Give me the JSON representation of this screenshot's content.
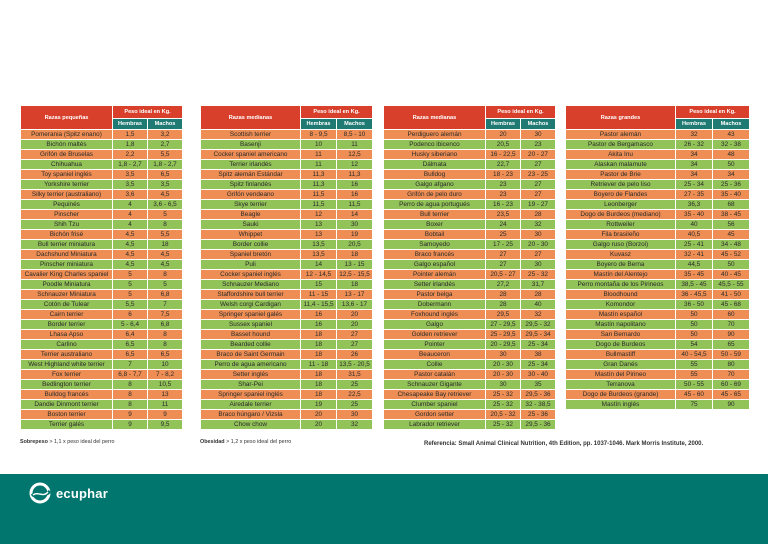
{
  "tables": [
    {
      "breed_header": "Razas pequeñas",
      "weight_header": "Peso ideal en Kg.",
      "female_header": "Hembras",
      "male_header": "Machos",
      "rows": [
        [
          "Pomerania (Spitz enano)",
          "1,5",
          "3,2"
        ],
        [
          "Bichón maltés",
          "1,8",
          "2,7"
        ],
        [
          "Grifón de Bruselas",
          "2,2",
          "5,5"
        ],
        [
          "Chihuahua",
          "1,8 - 2,7",
          "1,8 - 2,7"
        ],
        [
          "Toy spaniel inglés",
          "3,5",
          "6,5"
        ],
        [
          "Yorkshire terrier",
          "3,5",
          "3,5"
        ],
        [
          "Silky terrier (australiano)",
          "3,6",
          "4,5"
        ],
        [
          "Pequinés",
          "4",
          "3,6 - 6,5"
        ],
        [
          "Pinscher",
          "4",
          "5"
        ],
        [
          "Shih Tzu",
          "4",
          "8"
        ],
        [
          "Bichón frisé",
          "4,5",
          "5,5"
        ],
        [
          "Bull terrier miniatura",
          "4,5",
          "18"
        ],
        [
          "Dachshund Miniatura",
          "4,5",
          "4,5"
        ],
        [
          "Pinscher miniatura",
          "4,5",
          "4,5"
        ],
        [
          "Cavalier King Charles spaniel",
          "5",
          "8"
        ],
        [
          "Poodle Miniatura",
          "5",
          "5"
        ],
        [
          "Schnauzer Miniatura",
          "5",
          "6,8"
        ],
        [
          "Cotón de Tulear",
          "5,5",
          "7"
        ],
        [
          "Cairn terrier",
          "6",
          "7,5"
        ],
        [
          "Border terrier",
          "5 - 6,4",
          "6,8"
        ],
        [
          "Lhasa Apso",
          "6,4",
          "8"
        ],
        [
          "Carlino",
          "6,5",
          "8"
        ],
        [
          "Terrier australiano",
          "6,5",
          "6,5"
        ],
        [
          "West Highland white terrier",
          "7",
          "10"
        ],
        [
          "Fox terrier",
          "6,8 - 7,7",
          "7 - 8,2"
        ],
        [
          "Bedlington terrier",
          "8",
          "10,5"
        ],
        [
          "Bulldog francés",
          "8",
          "13"
        ],
        [
          "Dandie Dinmont terrier",
          "8",
          "11"
        ],
        [
          "Boston terrier",
          "9",
          "9"
        ],
        [
          "Terrier galés",
          "9",
          "9,5"
        ]
      ]
    },
    {
      "breed_header": "Razas medianas",
      "weight_header": "Peso ideal en Kg.",
      "female_header": "Hembras",
      "male_header": "Machos",
      "rows": [
        [
          "Scottish terrier",
          "8 - 9,5",
          "8,5 - 10"
        ],
        [
          "Basenji",
          "10",
          "11"
        ],
        [
          "Cocker spaniel americano",
          "11",
          "12,5"
        ],
        [
          "Terrier irlandés",
          "11",
          "12"
        ],
        [
          "Spitz alemán Estándar",
          "11,3",
          "11,3"
        ],
        [
          "Spitz finlandés",
          "11,3",
          "16"
        ],
        [
          "Grifón vendeano",
          "11,5",
          "16"
        ],
        [
          "Skye terrier",
          "11,5",
          "11,5"
        ],
        [
          "Beagle",
          "12",
          "14"
        ],
        [
          "Sauki",
          "13",
          "30"
        ],
        [
          "Whippet",
          "13",
          "19"
        ],
        [
          "Border collie",
          "13,5",
          "20,5"
        ],
        [
          "Spaniel bretón",
          "13,5",
          "18"
        ],
        [
          "Puli",
          "14",
          "13 - 15"
        ],
        [
          "Cocker spaniel inglés",
          "12 - 14,5",
          "12,5 - 15,5"
        ],
        [
          "Schnauzer Mediano",
          "15",
          "18"
        ],
        [
          "Staffordshire bull terrier",
          "11 - 15",
          "13 - 17"
        ],
        [
          "Welsh corgi Cardigan",
          "11,4 - 15,5",
          "13,6 - 17"
        ],
        [
          "Springer spaniel galés",
          "16",
          "20"
        ],
        [
          "Sussex spaniel",
          "16",
          "20"
        ],
        [
          "Basset hound",
          "18",
          "27"
        ],
        [
          "Bearded collie",
          "18",
          "27"
        ],
        [
          "Braco de Saint Germain",
          "18",
          "26"
        ],
        [
          "Perro de agua americano",
          "11 - 18",
          "13,5 - 20,5"
        ],
        [
          "Setter inglés",
          "18",
          "31,5"
        ],
        [
          "Shar-Pei",
          "18",
          "25"
        ],
        [
          "Springer spaniel inglés",
          "18",
          "22,5"
        ],
        [
          "Airedale terrier",
          "19",
          "25"
        ],
        [
          "Braco húngaro / Vizsla",
          "20",
          "30"
        ],
        [
          "Chow chow",
          "20",
          "32"
        ]
      ]
    },
    {
      "breed_header": "Razas medianas",
      "weight_header": "Peso ideal en Kg.",
      "female_header": "Hembras",
      "male_header": "Machos",
      "rows": [
        [
          "Perdiguero alemán",
          "20",
          "30"
        ],
        [
          "Podenco ibicenco",
          "20,5",
          "23"
        ],
        [
          "Husky siberiano",
          "16 - 22,5",
          "20 - 27"
        ],
        [
          "Dálmata",
          "22,7",
          "27"
        ],
        [
          "Bulldog",
          "18 - 23",
          "23 - 25"
        ],
        [
          "Galgo afgano",
          "23",
          "27"
        ],
        [
          "Grifón de pelo duro",
          "23",
          "27"
        ],
        [
          "Perro de agua portugués",
          "16 - 23",
          "19 - 27"
        ],
        [
          "Bull terrier",
          "23,5",
          "28"
        ],
        [
          "Boxer",
          "24",
          "32"
        ],
        [
          "Bobtail",
          "25",
          "30"
        ],
        [
          "Samoyedo",
          "17 - 25",
          "20 - 30"
        ],
        [
          "Braco francés",
          "27",
          "27"
        ],
        [
          "Galgo español",
          "27",
          "30"
        ],
        [
          "Pointer alemán",
          "20,5 - 27",
          "25 - 32"
        ],
        [
          "Setter irlandés",
          "27,2",
          "31,7"
        ],
        [
          "Pastor belga",
          "28",
          "28"
        ],
        [
          "Dobermann",
          "28",
          "40"
        ],
        [
          "Foxhound inglés",
          "29,5",
          "32"
        ],
        [
          "Galgo",
          "27 - 29,5",
          "29,5 - 32"
        ],
        [
          "Golden retriever",
          "25 - 29,5",
          "29,5 - 34"
        ],
        [
          "Pointer",
          "20 - 29,5",
          "25 - 34"
        ],
        [
          "Beauceron",
          "30",
          "38"
        ],
        [
          "Collie",
          "20 - 30",
          "25 - 34"
        ],
        [
          "Pastor catalán",
          "20 - 30",
          "30 - 40"
        ],
        [
          "Schnauzer Gigante",
          "30",
          "35"
        ],
        [
          "Chesapeake Bay retriever",
          "25 - 32",
          "29,5 - 36"
        ],
        [
          "Clumber spaniel",
          "25 - 32",
          "32 - 38,5"
        ],
        [
          "Gordon setter",
          "20,5 - 32",
          "25 - 36"
        ],
        [
          "Labrador retriever",
          "25 - 32",
          "29,5 - 36"
        ]
      ]
    },
    {
      "breed_header": "Razas grandes",
      "weight_header": "Peso ideal en Kg.",
      "female_header": "Hembras",
      "male_header": "Machos",
      "rows": [
        [
          "Pastor alemán",
          "32",
          "43"
        ],
        [
          "Pastor de Bergamasco",
          "26 - 32",
          "32 - 38"
        ],
        [
          "Akita Inu",
          "34",
          "48"
        ],
        [
          "Alaskan malamute",
          "34",
          "50"
        ],
        [
          "Pastor de Brie",
          "34",
          "34"
        ],
        [
          "Retriever de pelo liso",
          "25 - 34",
          "25 - 36"
        ],
        [
          "Boyero de Flandes",
          "27 - 35",
          "35 - 40"
        ],
        [
          "Leonberger",
          "36,3",
          "68"
        ],
        [
          "Dogo de Burdeos (mediano)",
          "35 - 40",
          "38 - 45"
        ],
        [
          "Rottweiler",
          "40",
          "56"
        ],
        [
          "Fila brasileño",
          "40,5",
          "45"
        ],
        [
          "Galgo ruso (Borzoi)",
          "25 - 41",
          "34 - 48"
        ],
        [
          "Kuvasz",
          "32 - 41",
          "45 - 52"
        ],
        [
          "Boyero de Berna",
          "44,5",
          "50"
        ],
        [
          "Mastín del Alentejo",
          "35 - 45",
          "40 - 45"
        ],
        [
          "Perro montaña de los Pirineos",
          "38,5 - 45",
          "45,5 - 55"
        ],
        [
          "Bloodhound",
          "36 - 45,5",
          "41 - 50"
        ],
        [
          "Komondor",
          "36 - 50",
          "45 - 68"
        ],
        [
          "Mastín español",
          "50",
          "60"
        ],
        [
          "Mastín napolitano",
          "50",
          "70"
        ],
        [
          "San Bernardo",
          "50",
          "90"
        ],
        [
          "Dogo de Burdeos",
          "54",
          "65"
        ],
        [
          "Bullmastiff",
          "40 - 54,5",
          "50 - 59"
        ],
        [
          "Gran Danés",
          "55",
          "80"
        ],
        [
          "Mastín del Pirineo",
          "55",
          "70"
        ],
        [
          "Terranova",
          "50 - 55",
          "60 - 69"
        ],
        [
          "Dogo de Burdeos (grande)",
          "45 - 60",
          "45 - 65"
        ],
        [
          "Mastín inglés",
          "75",
          "90"
        ]
      ]
    }
  ],
  "footer": {
    "sobrepeso_label": "Sobrepeso",
    "sobrepeso_text": "> 1,1 x peso ideal del perro",
    "obesidad_label": "Obesidad",
    "obesidad_text": "> 1,2 x peso ideal del perro",
    "reference": "Referencia: Small Animal Clinical Nutrition, 4th Edition, pp. 1037-1046. Mark Morris Institute, 2000."
  },
  "brand": {
    "name": "ecuphar",
    "logo_icon": "ecuphar-swirl-icon",
    "bar_color": "#00766f",
    "header_red": "#d8402c",
    "subheader_teal": "#1f7a73",
    "row_orange": "#ef8e54",
    "row_green": "#92c358"
  }
}
